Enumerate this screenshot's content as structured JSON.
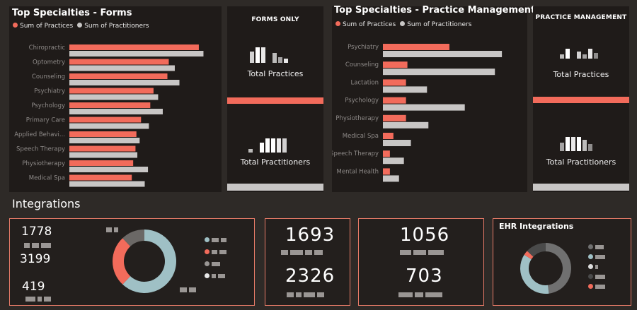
{
  "chart_data": [
    {
      "type": "bar",
      "orientation": "horizontal",
      "title": "Top Specialties - Forms",
      "categories": [
        "Chiropractic",
        "Optometry",
        "Counseling",
        "Psychiatry",
        "Psychology",
        "Primary Care",
        "Applied Behavi...",
        "Speech Therapy",
        "Physiotherapy",
        "Medical Spa"
      ],
      "series": [
        {
          "name": "Sum of Practices",
          "color": "#f26b5b",
          "values": [
            280,
            215,
            212,
            182,
            175,
            155,
            145,
            143,
            138,
            135
          ]
        },
        {
          "name": "Sum of Practitioners",
          "color": "#c8c6c5",
          "values": [
            290,
            228,
            238,
            192,
            202,
            172,
            152,
            147,
            170,
            163
          ]
        }
      ],
      "xlim": [
        0,
        300
      ],
      "legend": "top-left"
    },
    {
      "type": "bar",
      "orientation": "horizontal",
      "title": "Top Specialties - Practice Management",
      "categories": [
        "Psychiatry",
        "Counseling",
        "Lactation",
        "Psychology",
        "Physiotherapy",
        "Medical Spa",
        "Speech Therapy",
        "Mental Health"
      ],
      "series": [
        {
          "name": "Sum of Practices",
          "color": "#f26b5b",
          "values": [
            635,
            575,
            573,
            573,
            573,
            555,
            550,
            550
          ]
        },
        {
          "name": "Sum of Practitioners",
          "color": "#c8c6c5",
          "values": [
            710,
            700,
            603,
            657,
            605,
            580,
            570,
            563
          ]
        }
      ],
      "xlim": [
        540,
        720
      ],
      "legend": "top-left"
    },
    {
      "type": "pie",
      "variant": "donut",
      "values": [
        62,
        26,
        12
      ],
      "colors": [
        "#9fc0c5",
        "#f26b5b",
        "#6b6866"
      ]
    },
    {
      "type": "pie",
      "variant": "donut",
      "values": [
        48,
        36,
        3,
        13
      ],
      "colors": [
        "#707070",
        "#9fc0c5",
        "#f26b5b",
        "#4a4a4a"
      ]
    }
  ],
  "kpi_forms": {
    "title": "FORMS ONLY",
    "label_practices": "Total Practices",
    "label_practitioners": "Total Practitioners"
  },
  "kpi_pm": {
    "title": "PRACTICE MANAGEMENT",
    "label_practices": "Total Practices",
    "label_practitioners": "Total Practitioners"
  },
  "integrations": {
    "title": "Integrations",
    "card1": {
      "n1": "1778",
      "n2": "3199",
      "n3": "419"
    },
    "card2": {
      "n1": "1693",
      "n2": "2326"
    },
    "card3": {
      "n1": "1056",
      "n2": "703"
    },
    "card4": {
      "title": "EHR Integrations"
    }
  },
  "colors": {
    "accent": "#f26b5b",
    "grey": "#c8c6c5",
    "teal": "#9fc0c5",
    "panel": "#1f1b19",
    "background": "#2e2a27"
  }
}
